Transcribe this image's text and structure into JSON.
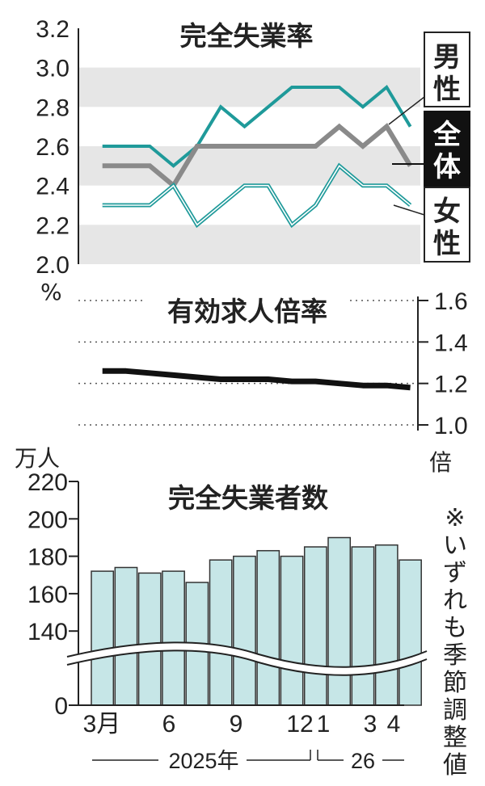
{
  "colors": {
    "male": "#1f9a9a",
    "total": "#8a8a8a",
    "female": "#1f9a9a",
    "band": "#e6e6e6",
    "bar_fill": "#c6e6e7",
    "ink": "#222222"
  },
  "x_labels": [
    "3月",
    "6",
    "9",
    "12",
    "1",
    "3",
    "4"
  ],
  "period_labels": [
    "2025年",
    "26"
  ],
  "note": "※いずれも季節調整値",
  "chart_data": [
    {
      "type": "line",
      "title": "完全失業率",
      "ylabel": "%",
      "ylim": [
        2.0,
        3.2
      ],
      "yticks": [
        "3.2",
        "3.0",
        "2.8",
        "2.6",
        "2.4",
        "2.2",
        "2.0"
      ],
      "grid": "alternating bands",
      "months": [
        "2025-03",
        "2025-04",
        "2025-05",
        "2025-06",
        "2025-07",
        "2025-08",
        "2025-09",
        "2025-10",
        "2025-11",
        "2025-12",
        "2026-01",
        "2026-02",
        "2026-03",
        "2026-04"
      ],
      "series": [
        {
          "name": "男性",
          "values": [
            2.6,
            2.6,
            2.6,
            2.5,
            2.6,
            2.8,
            2.7,
            2.8,
            2.9,
            2.9,
            2.9,
            2.8,
            2.9,
            2.7
          ]
        },
        {
          "name": "全体",
          "values": [
            2.5,
            2.5,
            2.5,
            2.4,
            2.6,
            2.6,
            2.6,
            2.6,
            2.6,
            2.6,
            2.7,
            2.6,
            2.7,
            2.5
          ]
        },
        {
          "name": "女性",
          "values": [
            2.3,
            2.3,
            2.3,
            2.4,
            2.2,
            2.3,
            2.4,
            2.4,
            2.2,
            2.3,
            2.5,
            2.4,
            2.4,
            2.3
          ]
        }
      ],
      "legend": "right"
    },
    {
      "type": "line",
      "title": "有効求人倍率",
      "ylabel": "倍",
      "ylim": [
        1.0,
        1.6
      ],
      "yticks": [
        "1.6",
        "1.4",
        "1.2",
        "1.0"
      ],
      "grid": "dotted",
      "months": [
        "2025-03",
        "2025-04",
        "2025-05",
        "2025-06",
        "2025-07",
        "2025-08",
        "2025-09",
        "2025-10",
        "2025-11",
        "2025-12",
        "2026-01",
        "2026-02",
        "2026-03",
        "2026-04"
      ],
      "series": [
        {
          "values": [
            1.26,
            1.26,
            1.25,
            1.24,
            1.23,
            1.22,
            1.22,
            1.22,
            1.21,
            1.21,
            1.2,
            1.19,
            1.19,
            1.18
          ]
        }
      ]
    },
    {
      "type": "bar",
      "title": "完全失業者数",
      "ylabel": "万人",
      "ylim": [
        0,
        220
      ],
      "axis_break": "between 0 and 140",
      "yticks": [
        "220",
        "200",
        "180",
        "160",
        "140",
        "0"
      ],
      "categories": [
        "2025-03",
        "2025-04",
        "2025-05",
        "2025-06",
        "2025-07",
        "2025-08",
        "2025-09",
        "2025-10",
        "2025-11",
        "2025-12",
        "2026-01",
        "2026-02",
        "2026-03",
        "2026-04"
      ],
      "values": [
        172,
        174,
        171,
        172,
        166,
        178,
        180,
        183,
        180,
        185,
        190,
        185,
        186,
        178
      ]
    }
  ]
}
